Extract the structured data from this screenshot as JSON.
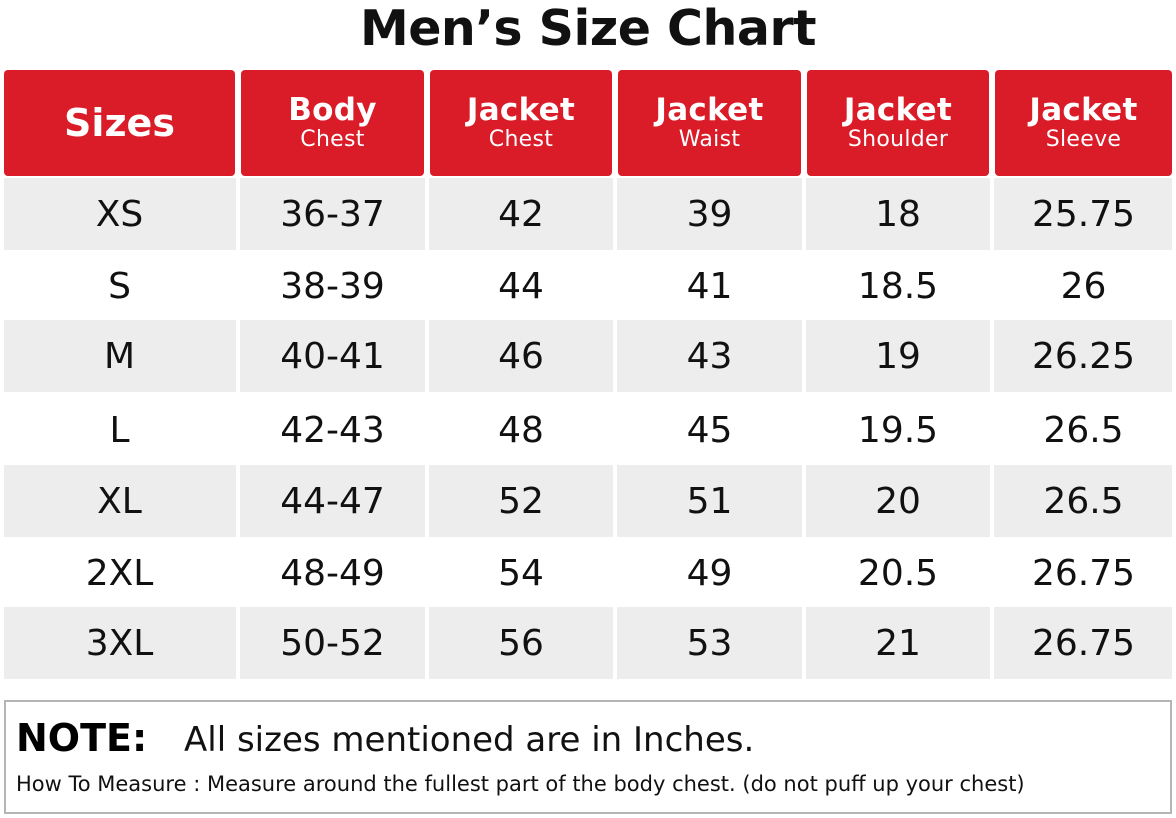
{
  "title": "Men’s Size Chart",
  "colors": {
    "header_red": "#d91c28",
    "row_shade": "#ededed",
    "text": "#111111"
  },
  "table": {
    "headers": [
      {
        "single": "Sizes"
      },
      {
        "top": "Body",
        "bottom": "Chest"
      },
      {
        "top": "Jacket",
        "bottom": "Chest"
      },
      {
        "top": "Jacket",
        "bottom": "Waist"
      },
      {
        "top": "Jacket",
        "bottom": "Shoulder"
      },
      {
        "top": "Jacket",
        "bottom": "Sleeve"
      }
    ],
    "rows": [
      [
        "XS",
        "36-37",
        "42",
        "39",
        "18",
        "25.75"
      ],
      [
        "S",
        "38-39",
        "44",
        "41",
        "18.5",
        "26"
      ],
      [
        "M",
        "40-41",
        "46",
        "43",
        "19",
        "26.25"
      ],
      [
        "L",
        "42-43",
        "48",
        "45",
        "19.5",
        "26.5"
      ],
      [
        "XL",
        "44-47",
        "52",
        "51",
        "20",
        "26.5"
      ],
      [
        "2XL",
        "48-49",
        "54",
        "49",
        "20.5",
        "26.75"
      ],
      [
        "3XL",
        "50-52",
        "56",
        "53",
        "21",
        "26.75"
      ]
    ]
  },
  "note": {
    "label": "NOTE:",
    "text": "All sizes mentioned are in Inches.",
    "measure": "How To Measure : Measure around the fullest part of the body chest. (do not puff up your chest)"
  }
}
